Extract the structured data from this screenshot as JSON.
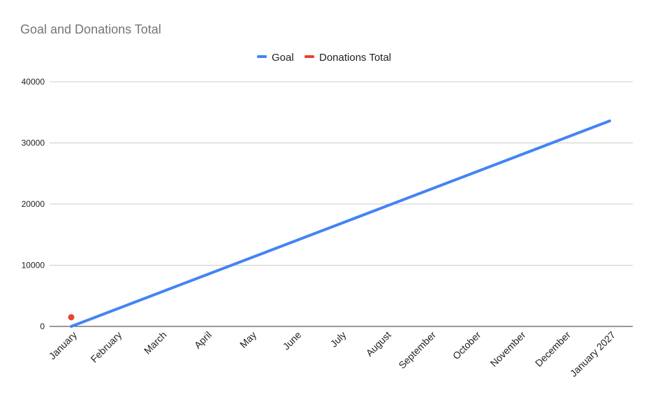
{
  "chart_data": {
    "type": "line",
    "title": "Goal and Donations Total",
    "xlabel": "",
    "ylabel": "",
    "categories": [
      "January",
      "February",
      "March",
      "April",
      "May",
      "June",
      "July",
      "August",
      "September",
      "October",
      "November",
      "December",
      "January 2027"
    ],
    "ylim": [
      0,
      40000
    ],
    "yticks": [
      0,
      10000,
      20000,
      30000,
      40000
    ],
    "grid": true,
    "legend_position": "top",
    "series": [
      {
        "name": "Goal",
        "color": "#4285F4",
        "style": "line",
        "values": [
          0,
          2800,
          5600,
          8400,
          11200,
          14000,
          16800,
          19600,
          22400,
          25200,
          28000,
          30800,
          33600
        ]
      },
      {
        "name": "Donations Total",
        "color": "#EA4335",
        "style": "point",
        "values": [
          1500,
          null,
          null,
          null,
          null,
          null,
          null,
          null,
          null,
          null,
          null,
          null,
          null
        ]
      }
    ]
  }
}
